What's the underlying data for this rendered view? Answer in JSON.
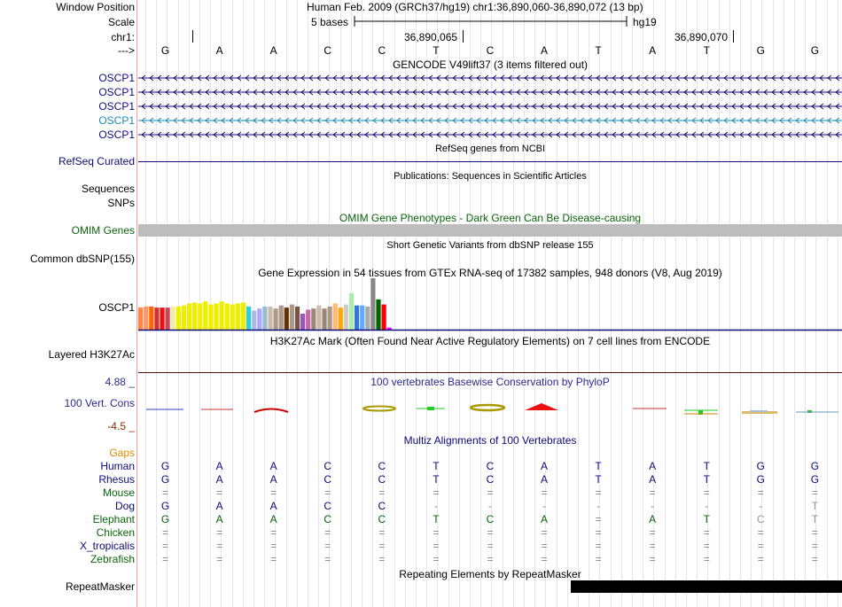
{
  "header": {
    "window_position_label": "Window Position",
    "scale_label": "Scale",
    "chr_label": "chr1:",
    "strand_label": "--->",
    "assembly_text": "Human Feb. 2009 (GRCh37/hg19)   chr1:36,890,060-36,890,072 (13 bp)",
    "scale_text": "5 bases",
    "db_text": "hg19",
    "coord_1": "36,890,065",
    "coord_2": "36,890,070",
    "bases": [
      "G",
      "A",
      "A",
      "C",
      "C",
      "T",
      "C",
      "A",
      "T",
      "A",
      "T",
      "G",
      "G"
    ]
  },
  "gencode": {
    "title": "GENCODE V49lift37 (3 items filtered out)",
    "transcripts": [
      {
        "label": "OSCP1",
        "color": "#0c0c78"
      },
      {
        "label": "OSCP1",
        "color": "#0c0c78"
      },
      {
        "label": "OSCP1",
        "color": "#0c0c78"
      },
      {
        "label": "OSCP1",
        "color": "#1d8ab6"
      },
      {
        "label": "OSCP1",
        "color": "#0c0c78"
      }
    ]
  },
  "refseq": {
    "title": "RefSeq genes from NCBI",
    "label": "RefSeq Curated",
    "color": "#0c0c78"
  },
  "publications": {
    "title": "Publications: Sequences in Scientific Articles",
    "label": "Sequences"
  },
  "snps_label": "SNPs",
  "omim": {
    "title": "OMIM Gene Phenotypes - Dark Green Can Be Disease-causing",
    "label": "OMIM Genes",
    "color": "#0b640b",
    "bar_color": "#bdbdbd"
  },
  "dbsnp": {
    "title": "Short Genetic Variants from dbSNP release 155",
    "label": "Common dbSNP(155)"
  },
  "gtex": {
    "title": "Gene Expression in 54 tissues from GTEx RNA-seq of 17382 samples, 948 donors (V8, Aug 2019)",
    "label": "OSCP1",
    "bars": [
      {
        "v": 0.43,
        "c": "#ff8844"
      },
      {
        "v": 0.45,
        "c": "#ff9966"
      },
      {
        "v": 0.45,
        "c": "#ff6600"
      },
      {
        "v": 0.43,
        "c": "#cc3333"
      },
      {
        "v": 0.43,
        "c": "#ee1111"
      },
      {
        "v": 0.43,
        "c": "#cc4455"
      },
      {
        "v": 0.45,
        "c": "#eeeeaa"
      },
      {
        "v": 0.45,
        "c": "#eeee00"
      },
      {
        "v": 0.47,
        "c": "#eeee00"
      },
      {
        "v": 0.51,
        "c": "#eeee00"
      },
      {
        "v": 0.53,
        "c": "#eeee00"
      },
      {
        "v": 0.51,
        "c": "#eeee00"
      },
      {
        "v": 0.55,
        "c": "#eeee00"
      },
      {
        "v": 0.49,
        "c": "#eeee00"
      },
      {
        "v": 0.51,
        "c": "#eeee00"
      },
      {
        "v": 0.55,
        "c": "#eeee00"
      },
      {
        "v": 0.51,
        "c": "#eeee00"
      },
      {
        "v": 0.49,
        "c": "#eeee00"
      },
      {
        "v": 0.51,
        "c": "#eeee00"
      },
      {
        "v": 0.53,
        "c": "#eeee00"
      },
      {
        "v": 0.45,
        "c": "#33ccdd"
      },
      {
        "v": 0.37,
        "c": "#aabbdd"
      },
      {
        "v": 0.41,
        "c": "#aaaaff"
      },
      {
        "v": 0.45,
        "c": "#99bbcc"
      },
      {
        "v": 0.45,
        "c": "#ccbbaa"
      },
      {
        "v": 0.41,
        "c": "#aa9988"
      },
      {
        "v": 0.47,
        "c": "#aa9988"
      },
      {
        "v": 0.43,
        "c": "#663300"
      },
      {
        "v": 0.49,
        "c": "#aa9988"
      },
      {
        "v": 0.45,
        "c": "#775544"
      },
      {
        "v": 0.31,
        "c": "#9955bb"
      },
      {
        "v": 0.39,
        "c": "#cc66aa"
      },
      {
        "v": 0.41,
        "c": "#998877"
      },
      {
        "v": 0.47,
        "c": "#ccbbaa"
      },
      {
        "v": 0.41,
        "c": "#998877"
      },
      {
        "v": 0.45,
        "c": "#aa9988"
      },
      {
        "v": 0.51,
        "c": "#ffbb77"
      },
      {
        "v": 0.43,
        "c": "#ffaa00"
      },
      {
        "v": 0.49,
        "c": "#cccccc"
      },
      {
        "v": 0.71,
        "c": "#aaeeaa"
      },
      {
        "v": 0.47,
        "c": "#3377dd"
      },
      {
        "v": 0.47,
        "c": "#66aaff"
      },
      {
        "v": 0.45,
        "c": "#aaaaaa"
      },
      {
        "v": 1.0,
        "c": "#888888"
      },
      {
        "v": 0.59,
        "c": "#006600"
      },
      {
        "v": 0.49,
        "c": "#ff0000"
      },
      {
        "v": 0.04,
        "c": "#ff00ff"
      }
    ]
  },
  "h3k27ac": {
    "title": "H3K27Ac Mark (Often Found Near Active Regulatory Elements) on 7 cell lines from ENCODE",
    "label": "Layered H3K27Ac"
  },
  "conservation": {
    "title": "100 vertebrates Basewise Conservation by PhyloP",
    "label": "100 Vert. Cons",
    "ymax": "4.88 _",
    "ymin": "-4.5 _",
    "label_color": "#2b2b8c",
    "max_color": "#2b2b8c",
    "min_color": "#8b2b00"
  },
  "multiz": {
    "title": "Multiz Alignments of 100 Vertebrates",
    "gaps_label": "Gaps",
    "gaps_color": "#e08a00",
    "species": [
      {
        "name": "Human",
        "color": "#0c0c78",
        "bases": [
          "G",
          "A",
          "A",
          "C",
          "C",
          "T",
          "C",
          "A",
          "T",
          "A",
          "T",
          "G",
          "G"
        ],
        "base_color": "#0c0c78"
      },
      {
        "name": "Rhesus",
        "color": "#0c0c78",
        "bases": [
          "G",
          "A",
          "A",
          "C",
          "C",
          "T",
          "C",
          "A",
          "T",
          "A",
          "T",
          "G",
          "G"
        ],
        "base_color": "#0c0c78"
      },
      {
        "name": "Mouse",
        "color": "#0b640b",
        "bases": [
          "=",
          "=",
          "=",
          "=",
          "=",
          "=",
          "=",
          "=",
          "=",
          "=",
          "=",
          "=",
          "="
        ],
        "base_color": "#888888"
      },
      {
        "name": "Dog",
        "color": "#0c0c78",
        "bases": [
          "G",
          "A",
          "A",
          "C",
          "C",
          "-",
          "-",
          "-",
          "-",
          "-",
          "-",
          "-",
          "T"
        ],
        "base_color": "#0c0c78"
      },
      {
        "name": "Elephant",
        "color": "#0b640b",
        "bases": [
          "G",
          "A",
          "A",
          "C",
          "C",
          "T",
          "C",
          "A",
          "=",
          "A",
          "T",
          "C",
          "T"
        ],
        "base_color": "#0b640b"
      },
      {
        "name": "Chicken",
        "color": "#0b640b",
        "bases": [
          "=",
          "=",
          "=",
          "=",
          "=",
          "=",
          "=",
          "=",
          "=",
          "=",
          "=",
          "=",
          "="
        ],
        "base_color": "#888888"
      },
      {
        "name": "X_tropicalis",
        "color": "#0c0c78",
        "bases": [
          "=",
          "=",
          "=",
          "=",
          "=",
          "=",
          "=",
          "=",
          "=",
          "=",
          "=",
          "=",
          "="
        ],
        "base_color": "#888888"
      },
      {
        "name": "Zebrafish",
        "color": "#0b640b",
        "bases": [
          "=",
          "=",
          "=",
          "=",
          "=",
          "=",
          "=",
          "=",
          "=",
          "=",
          "=",
          "=",
          "="
        ],
        "base_color": "#888888"
      }
    ]
  },
  "repeatmasker": {
    "title": "Repeating Elements by RepeatMasker",
    "label": "RepeatMasker"
  }
}
